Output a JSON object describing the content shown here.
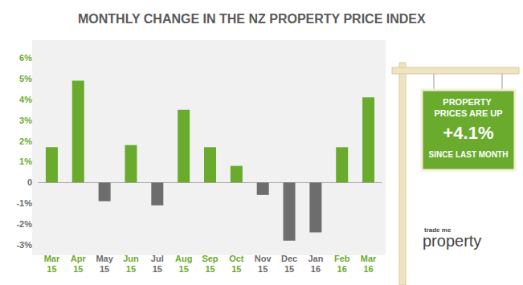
{
  "chart_data": {
    "type": "bar",
    "title": "MONTHLY CHANGE IN THE NZ PROPERTY PRICE INDEX",
    "categories": [
      "Mar 15",
      "Apr 15",
      "May 15",
      "Jun 15",
      "Jul 15",
      "Aug 15",
      "Sep 15",
      "Oct 15",
      "Nov 15",
      "Dec 15",
      "Jan 16",
      "Feb 16",
      "Mar 16"
    ],
    "values": [
      1.7,
      4.9,
      -0.9,
      1.8,
      -1.1,
      3.5,
      1.7,
      0.8,
      -0.6,
      -2.8,
      -2.4,
      1.7,
      4.1
    ],
    "colors": [
      "#6aab2e",
      "#6aab2e",
      "#6d6d6d",
      "#6aab2e",
      "#6d6d6d",
      "#6aab2e",
      "#6aab2e",
      "#6aab2e",
      "#6d6d6d",
      "#6d6d6d",
      "#6d6d6d",
      "#6aab2e",
      "#6aab2e"
    ],
    "ylim": [
      -3,
      6
    ],
    "yticks": [
      {
        "value": -3,
        "label": "-3%"
      },
      {
        "value": -2,
        "label": "-2%"
      },
      {
        "value": -1,
        "label": "-1%"
      },
      0,
      {
        "value": 1,
        "label": "1%"
      },
      {
        "value": 2,
        "label": "2%"
      },
      {
        "value": 3,
        "label": "3%"
      },
      {
        "value": 4,
        "label": "4%"
      },
      {
        "value": 5,
        "label": "5%"
      },
      {
        "value": 6,
        "label": "6%"
      }
    ],
    "grid": false,
    "annotations": [
      "PROPERTY PRICES ARE UP",
      "+4.1%",
      "SINCE LAST MONTH"
    ],
    "logo": [
      "trade me",
      "property"
    ]
  }
}
